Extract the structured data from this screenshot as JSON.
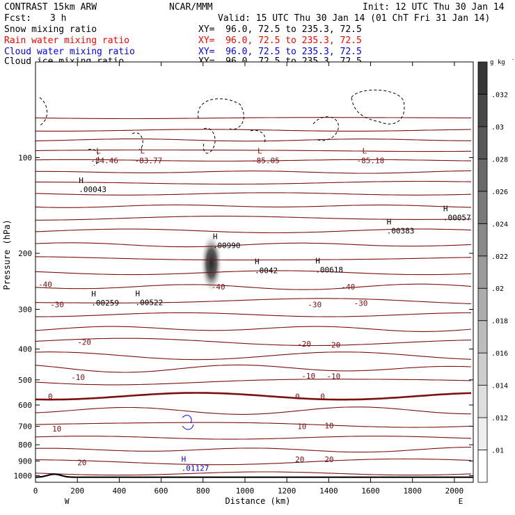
{
  "header": {
    "model": "CONTRAST 15km ARW",
    "center": "NCAR/MMM",
    "init": "Init: 12 UTC Thu 30 Jan 14",
    "fcst_label": "Fcst:",
    "fcst_value": "3 h",
    "valid": "Valid: 15 UTC Thu 30 Jan 14 (01 ChT Fri 31 Jan 14)"
  },
  "fields": [
    {
      "name": "Snow mixing ratio",
      "xy": "XY=  96.0, 72.5 to 235.3, 72.5",
      "color": "#000000"
    },
    {
      "name": "Rain water mixing ratio",
      "xy": "XY=  96.0, 72.5 to 235.3, 72.5",
      "color": "#ff0000"
    },
    {
      "name": "Cloud water mixing ratio",
      "xy": "XY=  96.0, 72.5 to 235.3, 72.5",
      "color": "#0000ff"
    },
    {
      "name": "Cloud ice mixing ratio",
      "xy": "XY=  96.0, 72.5 to 235.3, 72.5",
      "color": "#000000"
    }
  ],
  "chart_data": {
    "type": "contour",
    "xlabel": "Distance (km)",
    "ylabel": "Pressure (hPa)",
    "xlim": [
      0,
      2090
    ],
    "ylim": [
      1050,
      50
    ],
    "y_scale": "log",
    "x_ticks": [
      "0",
      "200",
      "400",
      "600",
      "800",
      "1000",
      "1200",
      "1400",
      "1600",
      "1800",
      "2000"
    ],
    "y_ticks": [
      "100",
      "200",
      "300",
      "400",
      "500",
      "600",
      "700",
      "800",
      "900",
      "1000"
    ],
    "x_end_labels": {
      "left": "W",
      "right": "E"
    },
    "colorbar": {
      "unit": "g kg",
      "unit_exp": "-1",
      "ticks": [
        ".01",
        ".012",
        ".014",
        ".016",
        ".018",
        ".02",
        ".022",
        ".024",
        ".026",
        ".028",
        ".03",
        ".032"
      ]
    },
    "temperature_labels": [
      {
        "text": "-40",
        "x": -10,
        "p": 250
      },
      {
        "text": "-40",
        "x": 840,
        "p": 255
      },
      {
        "text": "-40",
        "x": 1460,
        "p": 255
      },
      {
        "text": "-30",
        "x": 70,
        "p": 290
      },
      {
        "text": "-30",
        "x": 1300,
        "p": 290
      },
      {
        "text": "-30",
        "x": 1520,
        "p": 287
      },
      {
        "text": "-20",
        "x": 200,
        "p": 380
      },
      {
        "text": "-20",
        "x": 1250,
        "p": 385
      },
      {
        "text": "-20",
        "x": 1390,
        "p": 388
      },
      {
        "text": "-10",
        "x": 170,
        "p": 490
      },
      {
        "text": "-10",
        "x": 1270,
        "p": 485
      },
      {
        "text": "-10",
        "x": 1390,
        "p": 487
      },
      {
        "text": "0",
        "x": 60,
        "p": 563
      },
      {
        "text": "0",
        "x": 1240,
        "p": 563
      },
      {
        "text": "0",
        "x": 1360,
        "p": 563
      },
      {
        "text": "10",
        "x": 80,
        "p": 712
      },
      {
        "text": "10",
        "x": 1250,
        "p": 700
      },
      {
        "text": "10",
        "x": 1380,
        "p": 697
      },
      {
        "text": "20",
        "x": 200,
        "p": 910
      },
      {
        "text": "20",
        "x": 1240,
        "p": 890
      },
      {
        "text": "20",
        "x": 1380,
        "p": 890
      }
    ],
    "lows": [
      {
        "text": "-84.46",
        "x": 310,
        "p": 100
      },
      {
        "text": "-83.77",
        "x": 520,
        "p": 100
      },
      {
        "text": "-85.05",
        "x": 1080,
        "p": 100
      },
      {
        "text": "-85.18",
        "x": 1580,
        "p": 100
      }
    ],
    "highs": [
      {
        "text": ".00043",
        "x": 220,
        "p": 124,
        "color": "#000000"
      },
      {
        "text": ".00990",
        "x": 860,
        "p": 186,
        "color": "#000000"
      },
      {
        "text": ".0042",
        "x": 1060,
        "p": 223,
        "color": "#000000"
      },
      {
        "text": ".00618",
        "x": 1350,
        "p": 222,
        "color": "#000000"
      },
      {
        "text": ".00383",
        "x": 1690,
        "p": 167,
        "color": "#000000"
      },
      {
        "text": ".00057",
        "x": 1960,
        "p": 152,
        "color": "#000000"
      },
      {
        "text": ".00259",
        "x": 280,
        "p": 282,
        "color": "#000000"
      },
      {
        "text": ".00522",
        "x": 490,
        "p": 281,
        "color": "#000000"
      },
      {
        "text": ".01127",
        "x": 710,
        "p": 932,
        "color": "#0000ff"
      }
    ]
  }
}
